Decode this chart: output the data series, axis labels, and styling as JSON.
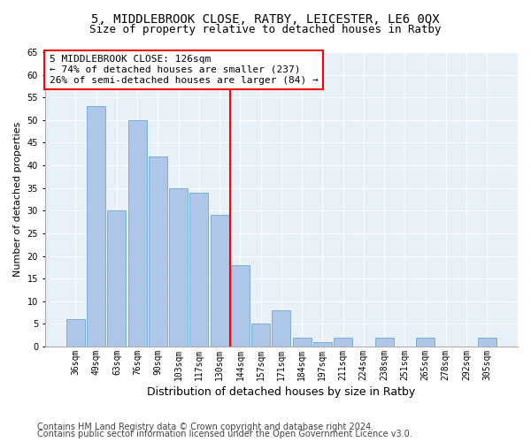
{
  "title1": "5, MIDDLEBROOK CLOSE, RATBY, LEICESTER, LE6 0QX",
  "title2": "Size of property relative to detached houses in Ratby",
  "xlabel": "Distribution of detached houses by size in Ratby",
  "ylabel": "Number of detached properties",
  "categories": [
    "36sqm",
    "49sqm",
    "63sqm",
    "76sqm",
    "90sqm",
    "103sqm",
    "117sqm",
    "130sqm",
    "144sqm",
    "157sqm",
    "171sqm",
    "184sqm",
    "197sqm",
    "211sqm",
    "224sqm",
    "238sqm",
    "251sqm",
    "265sqm",
    "278sqm",
    "292sqm",
    "305sqm"
  ],
  "values": [
    6,
    53,
    30,
    50,
    42,
    35,
    34,
    29,
    18,
    5,
    8,
    2,
    1,
    2,
    0,
    2,
    0,
    2,
    0,
    0,
    2
  ],
  "bar_color": "#aec6e8",
  "bar_edge_color": "#7aafd4",
  "vline_color": "red",
  "annotation_line1": "5 MIDDLEBROOK CLOSE: 126sqm",
  "annotation_line2": "← 74% of detached houses are smaller (237)",
  "annotation_line3": "26% of semi-detached houses are larger (84) →",
  "annotation_box_color": "white",
  "annotation_box_edge": "red",
  "ylim": [
    0,
    65
  ],
  "yticks": [
    0,
    5,
    10,
    15,
    20,
    25,
    30,
    35,
    40,
    45,
    50,
    55,
    60,
    65
  ],
  "background_color": "#e8f0f8",
  "footer1": "Contains HM Land Registry data © Crown copyright and database right 2024.",
  "footer2": "Contains public sector information licensed under the Open Government Licence v3.0.",
  "title1_fontsize": 10,
  "title2_fontsize": 9,
  "xlabel_fontsize": 9,
  "ylabel_fontsize": 8,
  "tick_fontsize": 7,
  "annotation_fontsize": 8,
  "footer_fontsize": 7
}
